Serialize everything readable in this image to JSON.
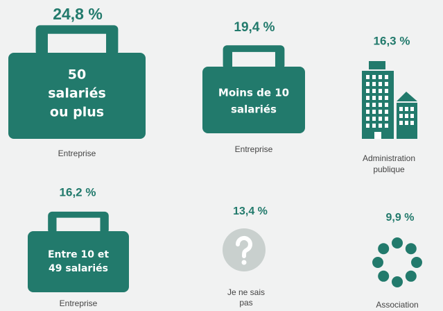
{
  "items": [
    {
      "percent": "24,8 %",
      "icon_text": [
        "50",
        "salariés",
        "ou plus"
      ],
      "label": [
        "Entreprise"
      ]
    },
    {
      "percent": "19,4 %",
      "icon_text": [
        "Moins de 10",
        "salariés"
      ],
      "label": [
        "Entreprise"
      ]
    },
    {
      "percent": "16,3 %",
      "label": [
        "Administration",
        "publique"
      ]
    },
    {
      "percent": "16,2 %",
      "icon_text": [
        "Entre 10 et",
        "49 salariés"
      ],
      "label": [
        "Entreprise"
      ]
    },
    {
      "percent": "13,4 %",
      "label": [
        "Je ne sais",
        "pas"
      ]
    },
    {
      "percent": "9,9 %",
      "label": [
        "Association"
      ]
    }
  ]
}
